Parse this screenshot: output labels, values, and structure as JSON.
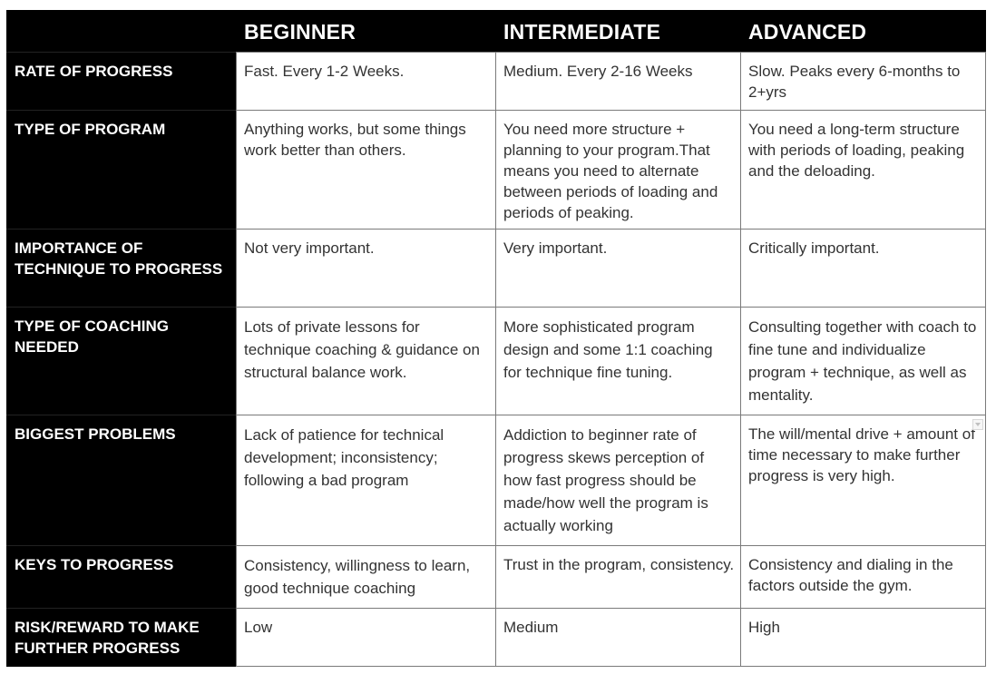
{
  "columns": [
    "BEGINNER",
    "INTERMEDIATE",
    "ADVANCED"
  ],
  "rows": [
    {
      "label": "RATE OF PROGRESS",
      "cells": [
        "Fast. Every 1-2 Weeks.",
        "Medium. Every 2-16 Weeks",
        "Slow. Peaks every 6-months to 2+yrs"
      ]
    },
    {
      "label": "TYPE OF PROGRAM",
      "cells": [
        "Anything works, but some things work better than others.",
        "You need more structure + planning to your program.That means you need to alternate between periods of loading and periods of peaking.",
        "You need a long-term structure with periods of loading, peaking and the deloading."
      ]
    },
    {
      "label": "IMPORTANCE OF TECHNIQUE TO PROGRESS",
      "cells": [
        "Not very important.",
        "Very important.",
        "Critically important."
      ]
    },
    {
      "label": "TYPE OF COACHING NEEDED",
      "cells": [
        "Lots of private lessons for technique coaching & guidance on structural balance work.",
        "More sophisticated program design and some 1:1 coaching for technique fine tuning.",
        "Consulting together with coach to fine tune and individualize program + technique, as well as mentality."
      ]
    },
    {
      "label": "BIGGEST PROBLEMS",
      "cells": [
        "Lack of patience for technical development; inconsistency; following a bad program",
        "Addiction to beginner rate of progress skews perception of how fast progress should be made/how well the program is actually working",
        "The will/mental drive + amount of time necessary to make further progress is very high."
      ]
    },
    {
      "label": "KEYS TO PROGRESS",
      "cells": [
        "Consistency, willingness to learn, good technique coaching",
        "Trust in the program, consistency.",
        "Consistency and dialing in the factors outside the gym."
      ]
    },
    {
      "label": "RISK/REWARD TO MAKE FURTHER PROGRESS",
      "cells": [
        "Low",
        "Medium",
        "High"
      ]
    }
  ]
}
